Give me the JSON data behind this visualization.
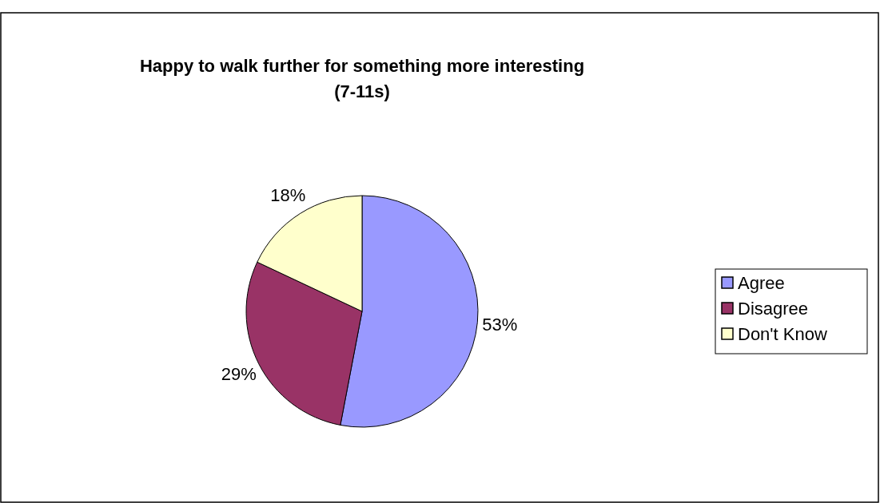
{
  "chart_data": {
    "type": "pie",
    "title": "Happy to walk further for something more interesting (7-11s)",
    "categories": [
      "Agree",
      "Disagree",
      "Don't Know"
    ],
    "values": [
      53,
      29,
      18
    ],
    "colors": [
      "#9999ff",
      "#993366",
      "#ffffcc"
    ],
    "value_labels": [
      "53%",
      "29%",
      "18%"
    ],
    "legend": "right"
  }
}
